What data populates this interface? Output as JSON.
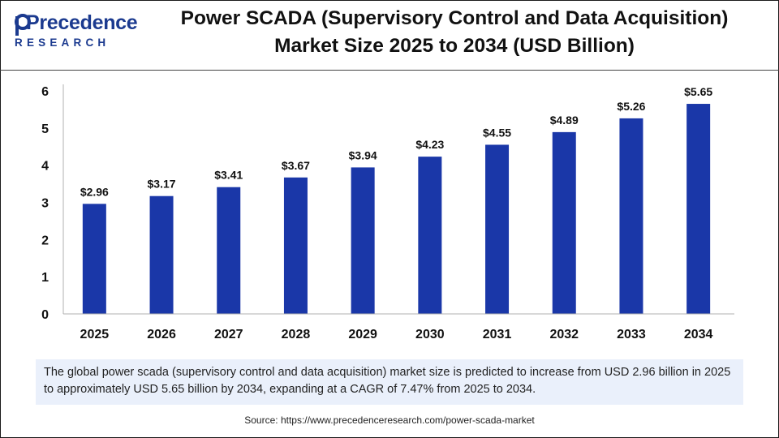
{
  "logo": {
    "word": "Precedence",
    "sub": "RESEARCH"
  },
  "title": {
    "line1": "Power SCADA (Supervisory Control and Data Acquisition)",
    "line2": "Market Size 2025 to 2034 (USD Billion)"
  },
  "colors": {
    "bar": "#1a37a8",
    "brand": "#1b3a8f",
    "note_bg": "#eaf0fb"
  },
  "chart_data": {
    "type": "bar",
    "categories": [
      "2025",
      "2026",
      "2027",
      "2028",
      "2029",
      "2030",
      "2031",
      "2032",
      "2033",
      "2034"
    ],
    "values": [
      2.96,
      3.17,
      3.41,
      3.67,
      3.94,
      4.23,
      4.55,
      4.89,
      5.26,
      5.65
    ],
    "labels": [
      "$2.96",
      "$3.17",
      "$3.41",
      "$3.67",
      "$3.94",
      "$4.23",
      "$4.55",
      "$4.89",
      "$5.26",
      "$5.65"
    ],
    "yticks": [
      "0",
      "1",
      "2",
      "3",
      "4",
      "5",
      "6"
    ],
    "ylim": [
      0,
      6
    ],
    "title": "Power SCADA (Supervisory Control and Data Acquisition) Market Size 2025 to 2034 (USD Billion)",
    "xlabel": "",
    "ylabel": "",
    "grid": false
  },
  "note": "The global power scada (supervisory control and data acquisition) market size is predicted to increase from USD 2.96 billion in 2025 to approximately USD 5.65 billion by 2034, expanding at a CAGR of 7.47% from 2025 to 2034.",
  "source": "Source: https://www.precedenceresearch.com/power-scada-market"
}
